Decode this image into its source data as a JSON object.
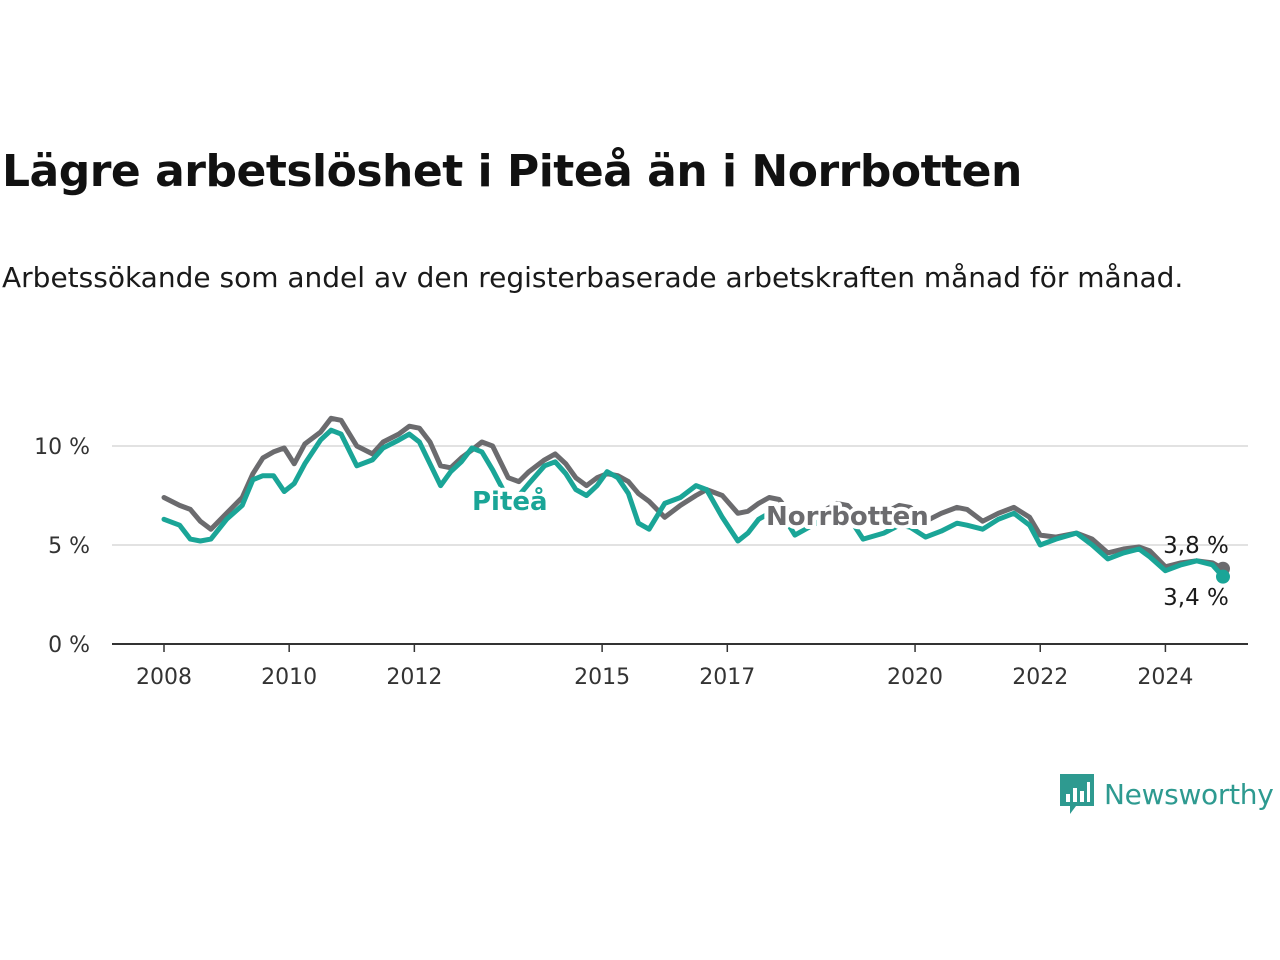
{
  "title": "Lägre arbetslöshet i Piteå än i Norrbotten",
  "subtitle": "Arbetssökande som andel av den registerbaserade arbetskraften månad för månad.",
  "brand": {
    "name": "Newsworthy",
    "icon": "newsworthy-chart-icon",
    "color": "#2e9a90"
  },
  "chart_data": {
    "type": "line",
    "x_unit": "year (decimal)",
    "xlim": [
      2008.0,
      2025.0
    ],
    "ylim": [
      0,
      12
    ],
    "grid": true,
    "y_ticks": [
      0,
      5,
      10
    ],
    "y_tick_labels": [
      "0 %",
      "5 %",
      "10 %"
    ],
    "x_ticks": [
      2008,
      2010,
      2012,
      2015,
      2017,
      2020,
      2022,
      2024
    ],
    "x_tick_labels": [
      "2008",
      "2010",
      "2012",
      "2015",
      "2017",
      "2020",
      "2022",
      "2024"
    ],
    "series": [
      {
        "name": "Norrbotten",
        "color": "#6b6b6e",
        "end_label": "3,8 %",
        "points": [
          [
            2008.0,
            7.4
          ],
          [
            2008.25,
            7.0
          ],
          [
            2008.42,
            6.8
          ],
          [
            2008.58,
            6.2
          ],
          [
            2008.75,
            5.8
          ],
          [
            2009.0,
            6.6
          ],
          [
            2009.25,
            7.4
          ],
          [
            2009.42,
            8.6
          ],
          [
            2009.58,
            9.4
          ],
          [
            2009.75,
            9.7
          ],
          [
            2009.92,
            9.9
          ],
          [
            2010.08,
            9.1
          ],
          [
            2010.25,
            10.1
          ],
          [
            2010.5,
            10.7
          ],
          [
            2010.67,
            11.4
          ],
          [
            2010.83,
            11.3
          ],
          [
            2011.08,
            10.0
          ],
          [
            2011.33,
            9.6
          ],
          [
            2011.5,
            10.2
          ],
          [
            2011.75,
            10.6
          ],
          [
            2011.92,
            11.0
          ],
          [
            2012.08,
            10.9
          ],
          [
            2012.25,
            10.2
          ],
          [
            2012.42,
            9.0
          ],
          [
            2012.58,
            8.9
          ],
          [
            2012.75,
            9.4
          ],
          [
            2012.92,
            9.8
          ],
          [
            2013.08,
            10.2
          ],
          [
            2013.25,
            10.0
          ],
          [
            2013.5,
            8.4
          ],
          [
            2013.67,
            8.2
          ],
          [
            2013.83,
            8.7
          ],
          [
            2014.08,
            9.3
          ],
          [
            2014.25,
            9.6
          ],
          [
            2014.42,
            9.1
          ],
          [
            2014.58,
            8.4
          ],
          [
            2014.75,
            8.0
          ],
          [
            2014.92,
            8.4
          ],
          [
            2015.08,
            8.6
          ],
          [
            2015.25,
            8.5
          ],
          [
            2015.42,
            8.2
          ],
          [
            2015.58,
            7.6
          ],
          [
            2015.75,
            7.2
          ],
          [
            2016.0,
            6.4
          ],
          [
            2016.25,
            7.0
          ],
          [
            2016.5,
            7.5
          ],
          [
            2016.67,
            7.8
          ],
          [
            2016.92,
            7.5
          ],
          [
            2017.17,
            6.6
          ],
          [
            2017.33,
            6.7
          ],
          [
            2017.5,
            7.1
          ],
          [
            2017.67,
            7.4
          ],
          [
            2017.83,
            7.3
          ],
          [
            2018.08,
            6.3
          ],
          [
            2018.25,
            6.4
          ],
          [
            2018.58,
            6.8
          ],
          [
            2018.75,
            7.1
          ],
          [
            2018.92,
            7.0
          ],
          [
            2019.17,
            6.1
          ],
          [
            2019.5,
            6.6
          ],
          [
            2019.75,
            7.0
          ],
          [
            2019.92,
            6.9
          ],
          [
            2020.17,
            6.2
          ],
          [
            2020.42,
            6.6
          ],
          [
            2020.67,
            6.9
          ],
          [
            2020.83,
            6.8
          ],
          [
            2021.08,
            6.2
          ],
          [
            2021.33,
            6.6
          ],
          [
            2021.58,
            6.9
          ],
          [
            2021.83,
            6.4
          ],
          [
            2022.0,
            5.5
          ],
          [
            2022.25,
            5.4
          ],
          [
            2022.58,
            5.6
          ],
          [
            2022.83,
            5.3
          ],
          [
            2023.08,
            4.6
          ],
          [
            2023.33,
            4.8
          ],
          [
            2023.58,
            4.9
          ],
          [
            2023.75,
            4.7
          ],
          [
            2024.0,
            3.9
          ],
          [
            2024.25,
            4.1
          ],
          [
            2024.5,
            4.2
          ],
          [
            2024.75,
            4.1
          ],
          [
            2024.92,
            3.8
          ]
        ]
      },
      {
        "name": "Piteå",
        "color": "#1aa597",
        "end_label": "3,4 %",
        "points": [
          [
            2008.0,
            6.3
          ],
          [
            2008.25,
            6.0
          ],
          [
            2008.42,
            5.3
          ],
          [
            2008.58,
            5.2
          ],
          [
            2008.75,
            5.3
          ],
          [
            2009.0,
            6.3
          ],
          [
            2009.25,
            7.0
          ],
          [
            2009.42,
            8.3
          ],
          [
            2009.58,
            8.5
          ],
          [
            2009.75,
            8.5
          ],
          [
            2009.92,
            7.7
          ],
          [
            2010.08,
            8.1
          ],
          [
            2010.25,
            9.1
          ],
          [
            2010.5,
            10.3
          ],
          [
            2010.67,
            10.8
          ],
          [
            2010.83,
            10.6
          ],
          [
            2011.08,
            9.0
          ],
          [
            2011.33,
            9.3
          ],
          [
            2011.5,
            9.9
          ],
          [
            2011.75,
            10.3
          ],
          [
            2011.92,
            10.6
          ],
          [
            2012.08,
            10.2
          ],
          [
            2012.25,
            9.1
          ],
          [
            2012.42,
            8.0
          ],
          [
            2012.58,
            8.7
          ],
          [
            2012.75,
            9.2
          ],
          [
            2012.92,
            9.9
          ],
          [
            2013.08,
            9.7
          ],
          [
            2013.25,
            8.8
          ],
          [
            2013.5,
            7.3
          ],
          [
            2013.67,
            7.5
          ],
          [
            2013.83,
            8.1
          ],
          [
            2014.08,
            9.0
          ],
          [
            2014.25,
            9.2
          ],
          [
            2014.42,
            8.6
          ],
          [
            2014.58,
            7.8
          ],
          [
            2014.75,
            7.5
          ],
          [
            2014.92,
            8.0
          ],
          [
            2015.08,
            8.7
          ],
          [
            2015.25,
            8.4
          ],
          [
            2015.42,
            7.6
          ],
          [
            2015.58,
            6.1
          ],
          [
            2015.75,
            5.8
          ],
          [
            2016.0,
            7.1
          ],
          [
            2016.25,
            7.4
          ],
          [
            2016.5,
            8.0
          ],
          [
            2016.67,
            7.8
          ],
          [
            2016.92,
            6.4
          ],
          [
            2017.17,
            5.2
          ],
          [
            2017.33,
            5.6
          ],
          [
            2017.5,
            6.3
          ],
          [
            2017.67,
            6.6
          ],
          [
            2017.83,
            6.8
          ],
          [
            2018.08,
            5.5
          ],
          [
            2018.25,
            5.8
          ],
          [
            2018.58,
            6.4
          ],
          [
            2018.75,
            6.8
          ],
          [
            2018.92,
            6.5
          ],
          [
            2019.17,
            5.3
          ],
          [
            2019.5,
            5.6
          ],
          [
            2019.75,
            6.0
          ],
          [
            2019.92,
            5.9
          ],
          [
            2020.17,
            5.4
          ],
          [
            2020.42,
            5.7
          ],
          [
            2020.67,
            6.1
          ],
          [
            2020.83,
            6.0
          ],
          [
            2021.08,
            5.8
          ],
          [
            2021.33,
            6.3
          ],
          [
            2021.58,
            6.6
          ],
          [
            2021.83,
            6.0
          ],
          [
            2022.0,
            5.0
          ],
          [
            2022.25,
            5.3
          ],
          [
            2022.58,
            5.6
          ],
          [
            2022.83,
            5.0
          ],
          [
            2023.08,
            4.3
          ],
          [
            2023.33,
            4.6
          ],
          [
            2023.58,
            4.8
          ],
          [
            2023.75,
            4.4
          ],
          [
            2024.0,
            3.7
          ],
          [
            2024.25,
            4.0
          ],
          [
            2024.5,
            4.2
          ],
          [
            2024.75,
            4.0
          ],
          [
            2024.92,
            3.4
          ]
        ]
      }
    ]
  }
}
